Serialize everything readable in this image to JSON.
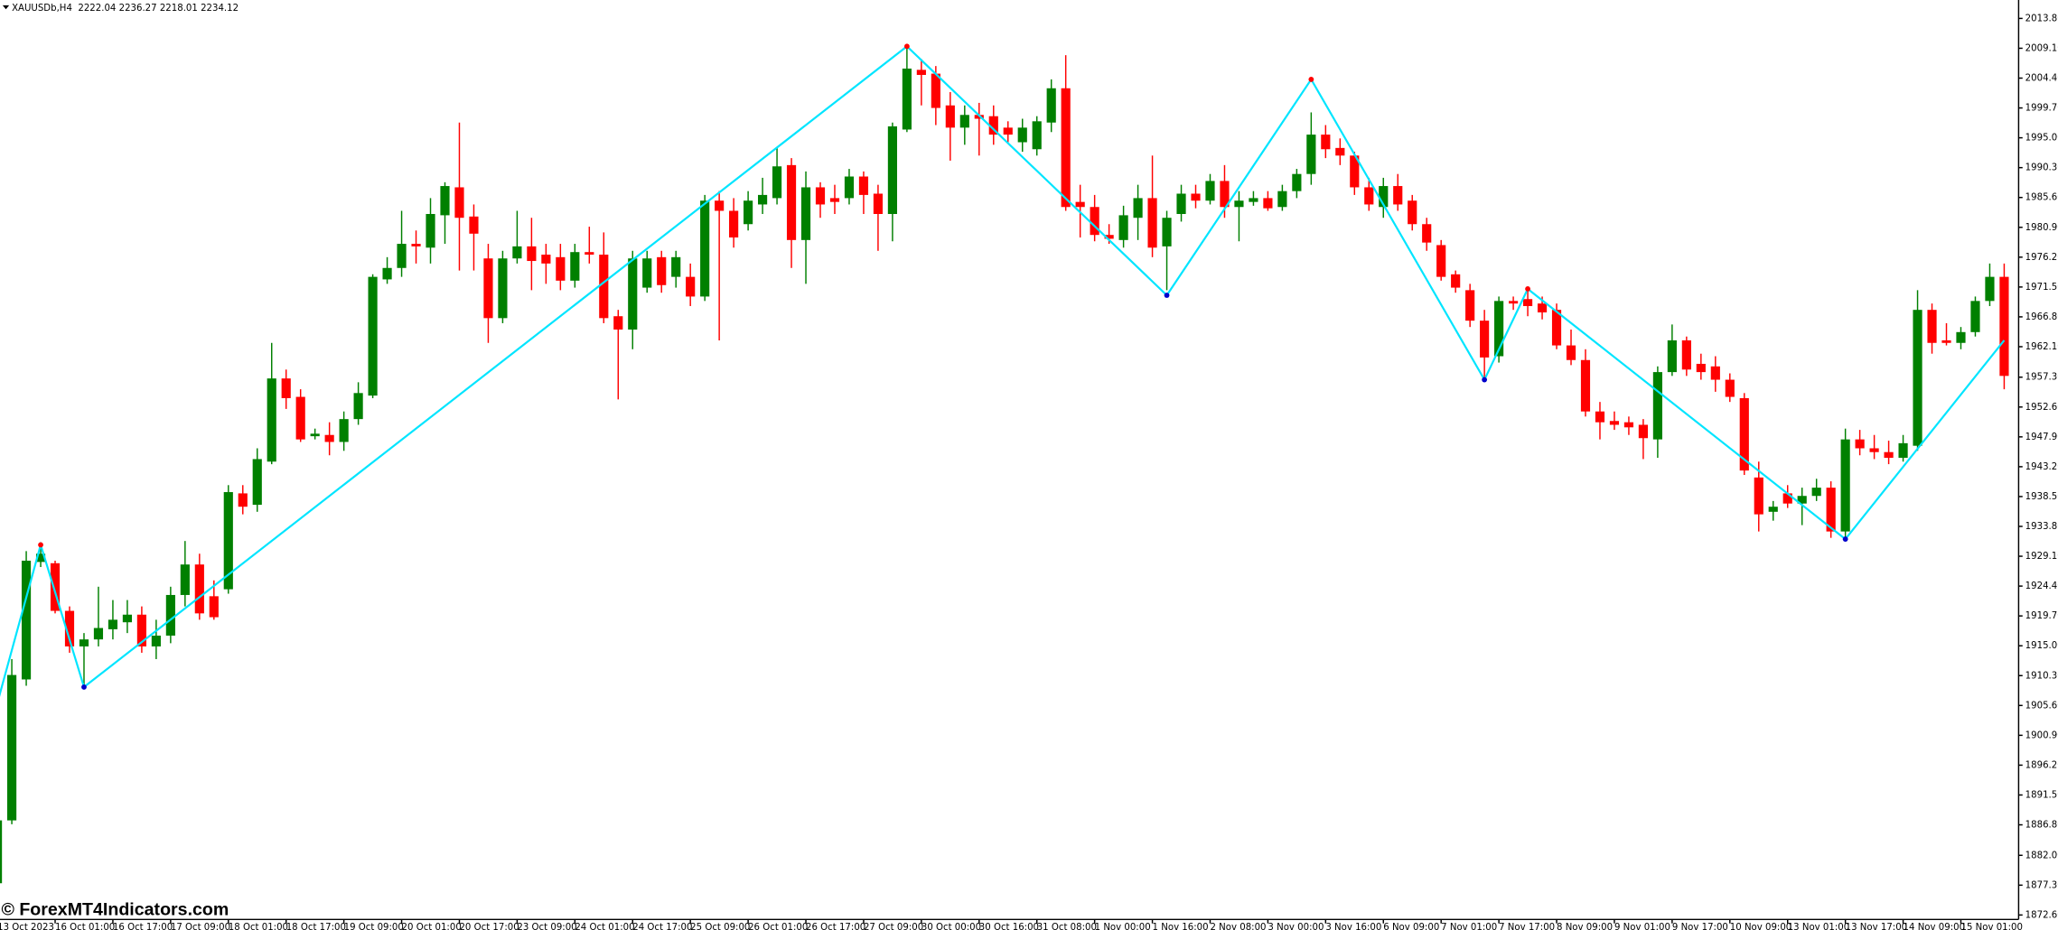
{
  "chart_data": {
    "type": "candlestick",
    "info": "XAUUSDb,H4  2222.04 2236.27 2218.01 2234.12",
    "watermark": "© ForexMT4Indicators.com",
    "up_color": "#008000",
    "down_color": "#ff0000",
    "grid": false,
    "ylim": [
      1871.9,
      2016.7
    ],
    "yticks": [
      {
        "value": 2013.8,
        "label": "2013.80"
      },
      {
        "value": 2009.1,
        "label": "2009.10"
      },
      {
        "value": 2004.4,
        "label": "2004.40"
      },
      {
        "value": 1999.7,
        "label": "1999.70"
      },
      {
        "value": 1995,
        "label": "1995.00"
      },
      {
        "value": 1990.3,
        "label": "1990.30"
      },
      {
        "value": 1985.6,
        "label": "1985.60"
      },
      {
        "value": 1980.9,
        "label": "1980.90"
      },
      {
        "value": 1976.2,
        "label": "1976.20"
      },
      {
        "value": 1971.5,
        "label": "1971.50"
      },
      {
        "value": 1966.8,
        "label": "1966.80"
      },
      {
        "value": 1962.1,
        "label": "1962.10"
      },
      {
        "value": 1957.3,
        "label": "1957.30"
      },
      {
        "value": 1952.6,
        "label": "1952.60"
      },
      {
        "value": 1947.9,
        "label": "1947.90"
      },
      {
        "value": 1943.2,
        "label": "1943.20"
      },
      {
        "value": 1938.5,
        "label": "1938.50"
      },
      {
        "value": 1933.8,
        "label": "1933.80"
      },
      {
        "value": 1929.1,
        "label": "1929.10"
      },
      {
        "value": 1924.4,
        "label": "1924.40"
      },
      {
        "value": 1919.7,
        "label": "1919.70"
      },
      {
        "value": 1915,
        "label": "1915.00"
      },
      {
        "value": 1910.3,
        "label": "1910.30"
      },
      {
        "value": 1905.6,
        "label": "1905.60"
      },
      {
        "value": 1900.9,
        "label": "1900.90"
      },
      {
        "value": 1896.2,
        "label": "1896.20"
      },
      {
        "value": 1891.5,
        "label": "1891.50"
      },
      {
        "value": 1886.8,
        "label": "1886.80"
      },
      {
        "value": 1882,
        "label": "1882.00"
      },
      {
        "value": 1877.3,
        "label": "1877.30"
      },
      {
        "value": 1872.6,
        "label": "1872.60"
      }
    ],
    "categories": [
      "13 Oct 2023",
      null,
      null,
      null,
      "16 Oct 01:00",
      null,
      null,
      null,
      "16 Oct 17:00",
      null,
      null,
      null,
      "17 Oct 09:00",
      null,
      null,
      null,
      "18 Oct 01:00",
      null,
      null,
      null,
      "18 Oct 17:00",
      null,
      null,
      null,
      "19 Oct 09:00",
      null,
      null,
      null,
      "20 Oct 01:00",
      null,
      null,
      null,
      "20 Oct 17:00",
      null,
      null,
      null,
      "23 Oct 09:00",
      null,
      null,
      null,
      "24 Oct 01:00",
      null,
      null,
      null,
      "24 Oct 17:00",
      null,
      null,
      null,
      "25 Oct 09:00",
      null,
      null,
      null,
      "26 Oct 01:00",
      null,
      null,
      null,
      "26 Oct 17:00",
      null,
      null,
      null,
      "27 Oct 09:00",
      null,
      null,
      null,
      "30 Oct 00:00",
      null,
      null,
      null,
      "30 Oct 16:00",
      null,
      null,
      null,
      "31 Oct 08:00",
      null,
      null,
      null,
      "1 Nov 00:00",
      null,
      null,
      null,
      "1 Nov 16:00",
      null,
      null,
      null,
      "2 Nov 08:00",
      null,
      null,
      null,
      "3 Nov 00:00",
      null,
      null,
      null,
      "3 Nov 16:00",
      null,
      null,
      null,
      "6 Nov 09:00",
      null,
      null,
      null,
      "7 Nov 01:00",
      null,
      null,
      null,
      "7 Nov 17:00",
      null,
      null,
      null,
      "8 Nov 09:00",
      null,
      null,
      null,
      "9 Nov 01:00",
      null,
      null,
      null,
      "9 Nov 17:00",
      null,
      null,
      null,
      "10 Nov 09:00",
      null,
      null,
      null,
      "13 Nov 01:00",
      null,
      null,
      null,
      "13 Nov 17:00",
      null,
      null,
      null,
      "14 Nov 09:00",
      null,
      null,
      null,
      "15 Nov 01:00",
      null,
      null,
      null
    ],
    "open": [
      1877.6,
      1887.5,
      1909.7,
      1928.2,
      1928.0,
      1920.5,
      1914.9,
      1916.0,
      1917.6,
      1918.7,
      1919.9,
      1914.9,
      1916.6,
      1923.0,
      1927.8,
      1922.8,
      1923.9,
      1939.0,
      1937.2,
      1944.0,
      1957.1,
      1954.2,
      1948.0,
      1948.2,
      1947.1,
      1950.7,
      1954.4,
      1972.7,
      1974.5,
      1978.3,
      1977.7,
      1982.8,
      1987.2,
      1982.6,
      1976.0,
      1966.6,
      1976.0,
      1977.9,
      1976.6,
      1976.2,
      1972.5,
      1977.0,
      1976.6,
      1966.9,
      1964.8,
      1971.4,
      1976.2,
      1973.1,
      1973.1,
      1970.0,
      1985.1,
      1983.5,
      1981.4,
      1984.5,
      1985.5,
      1990.7,
      1978.9,
      1987.2,
      1985.5,
      1985.5,
      1988.9,
      1986.2,
      1983.0,
      1996.3,
      2005.7,
      2005.1,
      2000.1,
      1996.6,
      1998.6,
      1998.4,
      1996.6,
      1994.3,
      1993.2,
      1997.4,
      2002.8,
      1984.9,
      1984.1,
      1979.7,
      1978.9,
      1982.4,
      1985.5,
      1977.9,
      1983.0,
      1986.2,
      1985.1,
      1988.2,
      1984.1,
      1984.9,
      1985.5,
      1984.1,
      1986.6,
      1989.3,
      1995.5,
      1993.4,
      1992.2,
      1987.2,
      1984.1,
      1987.4,
      1985.1,
      1981.4,
      1978.1,
      1973.5,
      1971.0,
      1966.2,
      1960.6,
      1969.3,
      1969.6,
      1968.9,
      1967.9,
      1962.3,
      1960.0,
      1951.9,
      1950.4,
      1950.2,
      1949.8,
      1947.5,
      1958.1,
      1963.1,
      1959.4,
      1959.0,
      1956.9,
      1954.0,
      1941.5,
      1936.1,
      1939.0,
      1937.4,
      1938.6,
      1939.9,
      1933.0,
      1947.5,
      1946.1,
      1945.5,
      1944.6,
      1946.5,
      1967.9,
      1963.1,
      1962.7,
      1964.4,
      1969.3,
      1973.1
    ],
    "high": [
      1887.9,
      1912.9,
      1929.9,
      1930.9,
      1928.4,
      1921.2,
      1917.0,
      1924.3,
      1922.2,
      1922.2,
      1921.2,
      1919.1,
      1924.3,
      1931.5,
      1929.5,
      1925.3,
      1940.3,
      1940.3,
      1946.1,
      1962.7,
      1958.5,
      1955.4,
      1949.2,
      1950.2,
      1951.9,
      1956.5,
      1973.5,
      1976.2,
      1983.5,
      1980.4,
      1985.5,
      1988.0,
      1997.4,
      1984.5,
      1978.3,
      1977.2,
      1983.5,
      1982.4,
      1978.3,
      1978.3,
      1978.3,
      1981.0,
      1980.1,
      1967.9,
      1977.2,
      1977.2,
      1977.2,
      1977.2,
      1975.2,
      1986.0,
      1986.6,
      1985.5,
      1986.6,
      1988.7,
      1993.4,
      1991.8,
      1989.7,
      1988.0,
      1987.6,
      1990.1,
      1989.7,
      1987.6,
      1997.4,
      2009.4,
      2007.4,
      2006.3,
      2002.2,
      2000.1,
      2000.5,
      2000.1,
      1997.6,
      1998.0,
      1998.4,
      2004.2,
      2008.0,
      1987.6,
      1986.0,
      1981.4,
      1984.3,
      1987.6,
      1992.2,
      1983.5,
      1987.6,
      1987.6,
      1989.3,
      1990.7,
      1986.6,
      1986.6,
      1986.6,
      1987.6,
      1990.1,
      1999.0,
      1997.0,
      1994.9,
      1992.8,
      1988.7,
      1988.7,
      1989.3,
      1986.0,
      1982.4,
      1978.9,
      1974.1,
      1972.0,
      1967.9,
      1970.0,
      1970.0,
      1971.4,
      1970.0,
      1968.9,
      1964.8,
      1961.7,
      1953.4,
      1951.9,
      1951.1,
      1950.7,
      1959.0,
      1965.6,
      1963.7,
      1961.0,
      1960.6,
      1957.9,
      1954.8,
      1944.0,
      1937.8,
      1940.3,
      1939.9,
      1941.3,
      1940.9,
      1949.2,
      1949.0,
      1948.2,
      1947.3,
      1948.2,
      1971.0,
      1968.9,
      1965.8,
      1965.2,
      1970.0,
      1975.2,
      1975.2
    ],
    "low": [
      1876.5,
      1886.9,
      1908.7,
      1927.4,
      1920.1,
      1913.9,
      1908.7,
      1914.9,
      1916.0,
      1917.0,
      1913.9,
      1912.9,
      1915.4,
      1921.2,
      1919.1,
      1919.1,
      1923.2,
      1935.7,
      1936.1,
      1943.6,
      1952.3,
      1947.1,
      1947.5,
      1945.0,
      1945.7,
      1949.8,
      1954.0,
      1972.0,
      1973.1,
      1975.2,
      1975.2,
      1978.3,
      1974.1,
      1974.1,
      1962.7,
      1965.8,
      1975.2,
      1971.0,
      1972.0,
      1971.0,
      1971.4,
      1975.2,
      1965.8,
      1953.8,
      1961.7,
      1970.6,
      1970.6,
      1971.4,
      1968.5,
      1969.3,
      1963.1,
      1977.7,
      1980.4,
      1983.0,
      1984.5,
      1974.5,
      1972.0,
      1982.4,
      1983.0,
      1984.5,
      1983.0,
      1977.2,
      1978.7,
      1995.9,
      2000.1,
      1997.0,
      1991.4,
      1993.9,
      1992.2,
      1993.9,
      1994.3,
      1992.8,
      1992.2,
      1995.9,
      1983.5,
      1979.3,
      1978.7,
      1978.3,
      1977.7,
      1978.9,
      1976.2,
      1971.0,
      1981.8,
      1983.9,
      1984.5,
      1982.4,
      1978.7,
      1984.3,
      1983.5,
      1983.5,
      1985.5,
      1987.6,
      1991.8,
      1990.7,
      1986.0,
      1983.5,
      1982.4,
      1983.5,
      1980.4,
      1977.2,
      1972.5,
      1970.6,
      1965.2,
      1956.9,
      1959.6,
      1967.9,
      1966.9,
      1966.4,
      1961.7,
      1959.2,
      1951.1,
      1947.5,
      1949.0,
      1948.2,
      1944.4,
      1944.6,
      1957.5,
      1957.5,
      1956.9,
      1955.0,
      1953.4,
      1941.9,
      1933.0,
      1934.7,
      1936.7,
      1934.0,
      1937.8,
      1932.0,
      1931.8,
      1945.0,
      1944.4,
      1943.6,
      1944.0,
      1945.7,
      1961.0,
      1962.3,
      1961.7,
      1963.7,
      1968.5,
      1955.4
    ],
    "close": [
      1887.5,
      1910.4,
      1928.4,
      1929.5,
      1920.5,
      1914.9,
      1916.0,
      1917.8,
      1919.1,
      1919.9,
      1914.9,
      1916.6,
      1923.0,
      1927.8,
      1920.1,
      1919.5,
      1939.2,
      1936.9,
      1944.4,
      1957.1,
      1954.0,
      1947.5,
      1948.4,
      1947.1,
      1950.7,
      1954.8,
      1973.1,
      1974.5,
      1978.3,
      1977.9,
      1983.0,
      1987.4,
      1982.4,
      1979.9,
      1966.6,
      1976.0,
      1977.9,
      1975.6,
      1975.2,
      1972.5,
      1977.0,
      1976.6,
      1966.6,
      1964.8,
      1976.0,
      1976.0,
      1971.8,
      1976.2,
      1970.0,
      1985.1,
      1983.5,
      1979.3,
      1985.1,
      1986.0,
      1990.5,
      1978.9,
      1987.2,
      1984.5,
      1984.9,
      1988.9,
      1986.0,
      1983.0,
      1996.8,
      2005.9,
      2004.9,
      1999.7,
      1996.6,
      1998.6,
      1998.0,
      1995.5,
      1995.5,
      1996.6,
      1997.6,
      2002.8,
      1984.1,
      1984.1,
      1979.7,
      1979.1,
      1982.8,
      1985.5,
      1977.7,
      1982.4,
      1986.2,
      1985.1,
      1988.2,
      1984.1,
      1985.1,
      1985.5,
      1983.9,
      1986.6,
      1989.3,
      1995.5,
      1993.2,
      1992.2,
      1987.2,
      1984.5,
      1987.4,
      1984.5,
      1981.4,
      1978.5,
      1973.1,
      1971.4,
      1966.2,
      1960.4,
      1969.3,
      1968.9,
      1968.5,
      1967.5,
      1962.3,
      1960.0,
      1951.9,
      1950.2,
      1949.8,
      1949.4,
      1947.7,
      1958.1,
      1963.1,
      1958.5,
      1958.1,
      1956.9,
      1954.2,
      1942.6,
      1935.7,
      1936.9,
      1937.4,
      1938.6,
      1939.9,
      1933.0,
      1947.5,
      1946.1,
      1945.5,
      1944.6,
      1946.9,
      1967.9,
      1962.7,
      1962.7,
      1964.4,
      1969.3,
      1973.1,
      1957.5
    ],
    "zigzag": {
      "color": "#00e5ff",
      "high_color": "#ff0000",
      "low_color": "#0000cc",
      "x": [
        0,
        3,
        6,
        63,
        81,
        91,
        103,
        106,
        128,
        139
      ],
      "values": [
        1906.0,
        1930.9,
        1908.5,
        2009.4,
        1970.2,
        2004.2,
        1956.9,
        1971.2,
        1931.8,
        1963.1
      ]
    }
  }
}
